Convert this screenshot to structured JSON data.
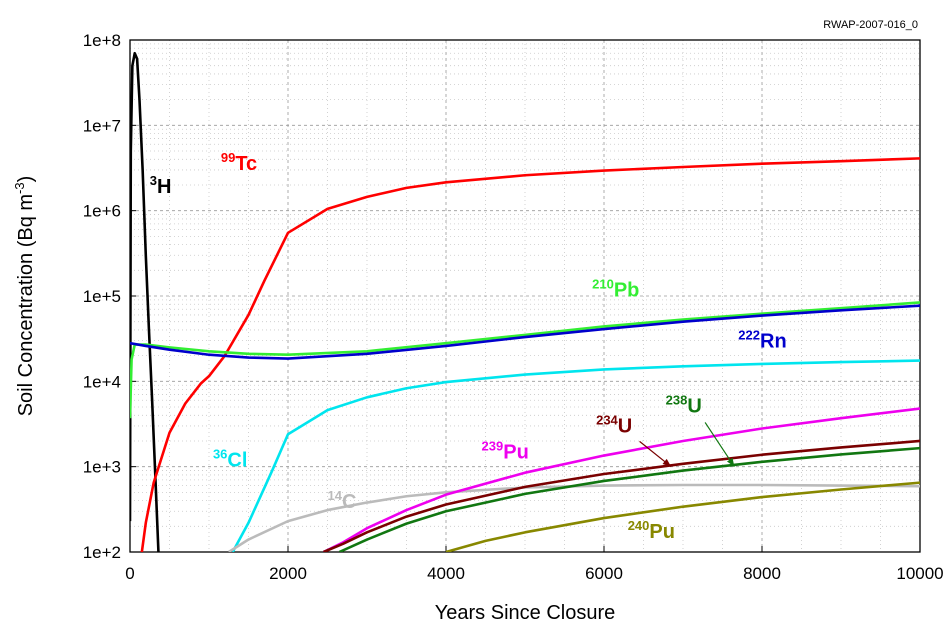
{
  "chart_data": {
    "type": "line",
    "figure_code": "RWAP-2007-016_0",
    "xlabel": "Years Since Closure",
    "ylabel_main": "Soil Concentration (Bq m",
    "ylabel_sup": "-3",
    "ylabel_end": ")",
    "xlim": [
      0,
      10000
    ],
    "ylim": [
      100,
      100000000
    ],
    "y_scale": "log",
    "grid": true,
    "x_ticks": [
      {
        "v": 0,
        "label": "0"
      },
      {
        "v": 2000,
        "label": "2000"
      },
      {
        "v": 4000,
        "label": "4000"
      },
      {
        "v": 6000,
        "label": "6000"
      },
      {
        "v": 8000,
        "label": "8000"
      },
      {
        "v": 10000,
        "label": "10000"
      }
    ],
    "y_ticks": [
      {
        "v": 100,
        "label": "1e+2"
      },
      {
        "v": 1000,
        "label": "1e+3"
      },
      {
        "v": 10000,
        "label": "1e+4"
      },
      {
        "v": 100000,
        "label": "1e+5"
      },
      {
        "v": 1000000,
        "label": "1e+6"
      },
      {
        "v": 10000000,
        "label": "1e+7"
      },
      {
        "v": 100000000,
        "label": "1e+8"
      }
    ],
    "series": [
      {
        "name": "3H",
        "mass": "3",
        "sym": "H",
        "color": "#000000",
        "label_at": [
          250,
          1600000
        ],
        "label_size": 20,
        "points": [
          [
            0,
            230
          ],
          [
            10,
            5000000
          ],
          [
            30,
            50000000
          ],
          [
            60,
            70000000
          ],
          [
            90,
            60000000
          ],
          [
            120,
            20000000
          ],
          [
            160,
            3000000
          ],
          [
            200,
            300000
          ],
          [
            240,
            40000
          ],
          [
            280,
            6000
          ],
          [
            320,
            800
          ],
          [
            360,
            100
          ]
        ]
      },
      {
        "name": "99Tc",
        "mass": "99",
        "sym": "Tc",
        "color": "#ff0000",
        "label_at": [
          1150,
          3000000
        ],
        "label_size": 20,
        "points": [
          [
            150,
            100
          ],
          [
            200,
            220
          ],
          [
            300,
            650
          ],
          [
            500,
            2500
          ],
          [
            700,
            5500
          ],
          [
            900,
            9500
          ],
          [
            1000,
            11500
          ],
          [
            1200,
            20000
          ],
          [
            1500,
            60000
          ],
          [
            1700,
            150000
          ],
          [
            2000,
            550000
          ],
          [
            2500,
            1050000
          ],
          [
            3000,
            1450000
          ],
          [
            3500,
            1850000
          ],
          [
            4000,
            2150000
          ],
          [
            5000,
            2600000
          ],
          [
            6000,
            2950000
          ],
          [
            7000,
            3250000
          ],
          [
            8000,
            3550000
          ],
          [
            9000,
            3800000
          ],
          [
            10000,
            4100000
          ]
        ]
      },
      {
        "name": "210Pb",
        "mass": "210",
        "sym": "Pb",
        "color": "#33ee33",
        "label_at": [
          5850,
          98000
        ],
        "label_size": 20,
        "points": [
          [
            0,
            3700
          ],
          [
            20,
            18000
          ],
          [
            60,
            27000
          ],
          [
            200,
            27000
          ],
          [
            500,
            25000
          ],
          [
            1000,
            22500
          ],
          [
            1500,
            21000
          ],
          [
            2000,
            20500
          ],
          [
            3000,
            22500
          ],
          [
            4000,
            28000
          ],
          [
            5000,
            35000
          ],
          [
            6000,
            44000
          ],
          [
            7000,
            53000
          ],
          [
            8000,
            62000
          ],
          [
            9000,
            72000
          ],
          [
            10000,
            84000
          ]
        ]
      },
      {
        "name": "222Rn",
        "mass": "222",
        "sym": "Rn",
        "color": "#0000cc",
        "label_at": [
          7700,
          25000
        ],
        "label_size": 20,
        "points": [
          [
            0,
            28000
          ],
          [
            200,
            26000
          ],
          [
            500,
            23500
          ],
          [
            1000,
            20500
          ],
          [
            1500,
            19000
          ],
          [
            2000,
            18500
          ],
          [
            3000,
            21000
          ],
          [
            4000,
            26000
          ],
          [
            5000,
            33000
          ],
          [
            6000,
            41000
          ],
          [
            7000,
            50000
          ],
          [
            8000,
            59000
          ],
          [
            9000,
            68000
          ],
          [
            10000,
            77000
          ]
        ]
      },
      {
        "name": "36Cl",
        "mass": "36",
        "sym": "Cl",
        "color": "#00e5ee",
        "label_at": [
          1050,
          1000
        ],
        "label_size": 20,
        "points": [
          [
            1300,
            100
          ],
          [
            1500,
            220
          ],
          [
            1800,
            900
          ],
          [
            2000,
            2400
          ],
          [
            2500,
            4600
          ],
          [
            3000,
            6500
          ],
          [
            3500,
            8300
          ],
          [
            4000,
            9800
          ],
          [
            5000,
            12000
          ],
          [
            6000,
            13800
          ],
          [
            7000,
            15000
          ],
          [
            8000,
            16000
          ],
          [
            9000,
            16800
          ],
          [
            10000,
            17500
          ]
        ]
      },
      {
        "name": "14C",
        "mass": "14",
        "sym": "C",
        "color": "#bbbbbb",
        "label_at": [
          2500,
          330
        ],
        "label_size": 20,
        "points": [
          [
            1250,
            100
          ],
          [
            1500,
            140
          ],
          [
            2000,
            230
          ],
          [
            2500,
            310
          ],
          [
            3000,
            380
          ],
          [
            3500,
            450
          ],
          [
            4000,
            500
          ],
          [
            5000,
            570
          ],
          [
            6000,
            600
          ],
          [
            7000,
            610
          ],
          [
            8000,
            610
          ],
          [
            9000,
            600
          ],
          [
            10000,
            590
          ]
        ]
      },
      {
        "name": "239Pu",
        "mass": "239",
        "sym": "Pu",
        "color": "#ee00ee",
        "label_at": [
          4450,
          1250
        ],
        "label_size": 20,
        "points": [
          [
            2450,
            100
          ],
          [
            2700,
            130
          ],
          [
            3000,
            190
          ],
          [
            3500,
            310
          ],
          [
            4000,
            470
          ],
          [
            5000,
            850
          ],
          [
            6000,
            1350
          ],
          [
            7000,
            2000
          ],
          [
            8000,
            2800
          ],
          [
            9000,
            3700
          ],
          [
            10000,
            4800
          ]
        ]
      },
      {
        "name": "234U",
        "mass": "234",
        "sym": "U",
        "color": "#7a0000",
        "label_at": [
          5900,
          2500
        ],
        "label_size": 20,
        "points": [
          [
            2450,
            100
          ],
          [
            2700,
            125
          ],
          [
            3000,
            170
          ],
          [
            3500,
            260
          ],
          [
            4000,
            360
          ],
          [
            5000,
            580
          ],
          [
            6000,
            820
          ],
          [
            7000,
            1080
          ],
          [
            8000,
            1380
          ],
          [
            9000,
            1680
          ],
          [
            10000,
            2000
          ]
        ]
      },
      {
        "name": "238U",
        "mass": "238",
        "sym": "U",
        "color": "#117711",
        "label_at": [
          6780,
          4300
        ],
        "label_size": 20,
        "points": [
          [
            2650,
            100
          ],
          [
            3000,
            140
          ],
          [
            3500,
            215
          ],
          [
            4000,
            300
          ],
          [
            5000,
            480
          ],
          [
            6000,
            680
          ],
          [
            7000,
            900
          ],
          [
            8000,
            1140
          ],
          [
            9000,
            1390
          ],
          [
            10000,
            1650
          ]
        ]
      },
      {
        "name": "240Pu",
        "mass": "240",
        "sym": "Pu",
        "color": "#888800",
        "label_at": [
          6300,
          145
        ],
        "label_size": 20,
        "points": [
          [
            4000,
            100
          ],
          [
            4500,
            135
          ],
          [
            5000,
            170
          ],
          [
            6000,
            250
          ],
          [
            7000,
            340
          ],
          [
            8000,
            440
          ],
          [
            9000,
            540
          ],
          [
            10000,
            650
          ]
        ]
      }
    ],
    "annotation_arrows": [
      {
        "from": [
          6450,
          1980
        ],
        "to": [
          6850,
          1000
        ],
        "color": "#7a0000"
      },
      {
        "from": [
          7280,
          3300
        ],
        "to": [
          7650,
          1000
        ],
        "color": "#117711"
      }
    ]
  }
}
